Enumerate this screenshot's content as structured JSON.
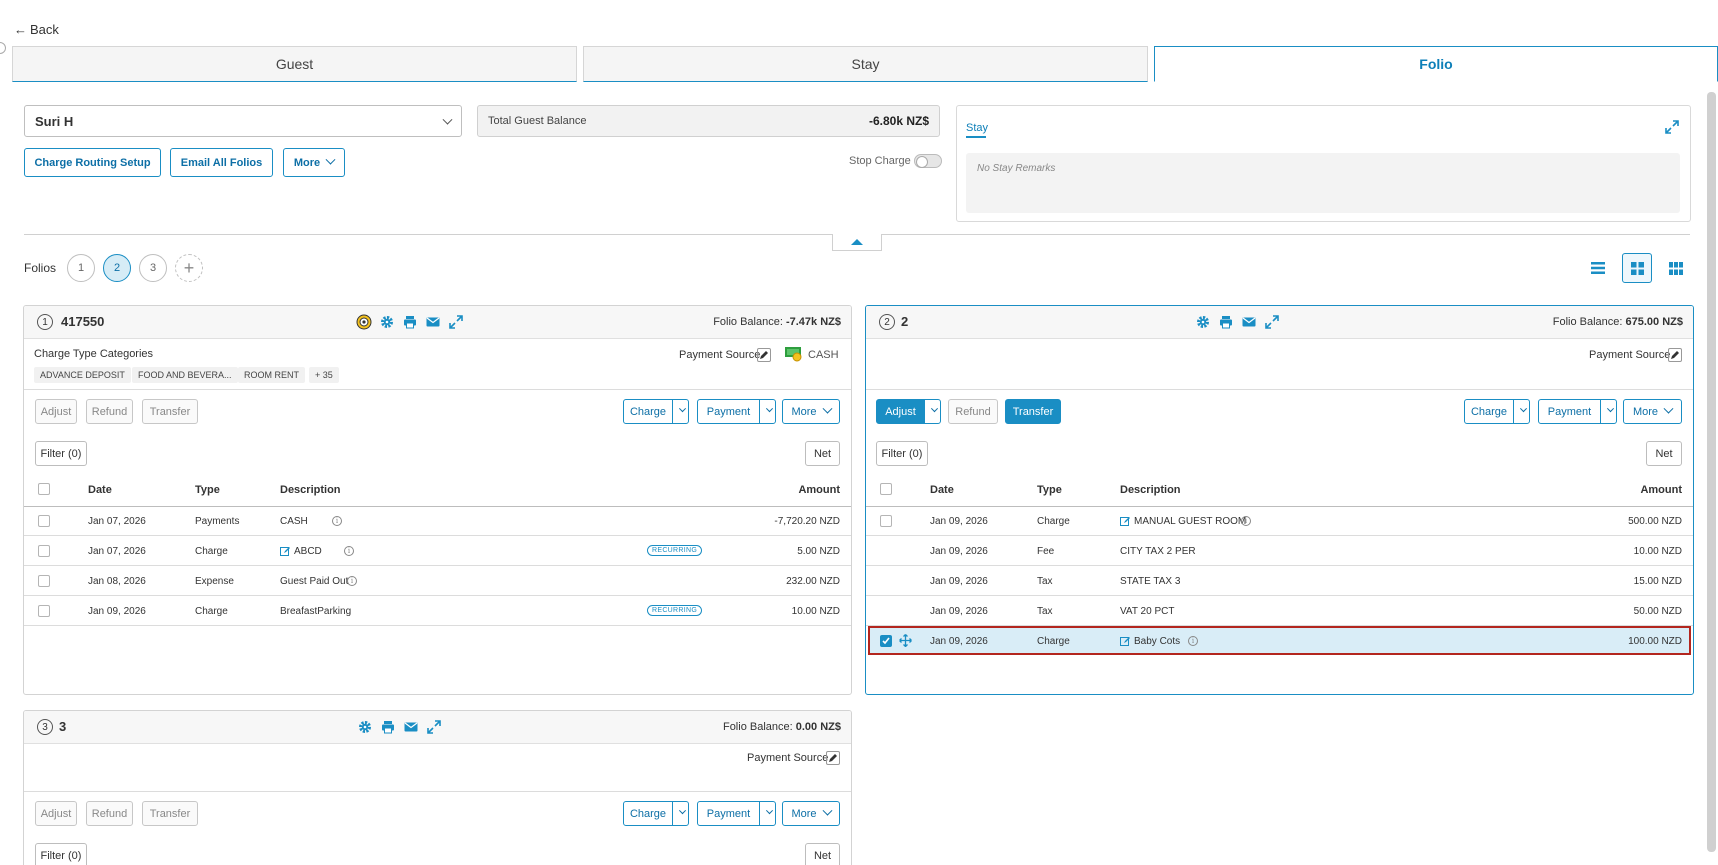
{
  "nav": {
    "back_label": "Back"
  },
  "tabs": [
    {
      "label": "Guest"
    },
    {
      "label": "Stay"
    },
    {
      "label": "Folio"
    }
  ],
  "guest_select": {
    "value": "Suri H"
  },
  "total_balance": {
    "label": "Total Guest Balance",
    "value": "-6.80k NZ$"
  },
  "actions": {
    "charge_routing": "Charge Routing Setup",
    "email_all": "Email All Folios",
    "more": "More"
  },
  "stop_charge": {
    "label": "Stop Charge"
  },
  "stay_panel": {
    "tab_label": "Stay",
    "remarks": "No Stay Remarks"
  },
  "folios_bar": {
    "label": "Folios",
    "numbers": [
      "1",
      "2",
      "3"
    ],
    "add": "+"
  },
  "common": {
    "adjust": "Adjust",
    "refund": "Refund",
    "transfer": "Transfer",
    "charge": "Charge",
    "payment": "Payment",
    "more": "More",
    "filter": "Filter (0)",
    "net": "Net",
    "payment_source": "Payment Source",
    "folio_balance": "Folio Balance:",
    "col_date": "Date",
    "col_type": "Type",
    "col_desc": "Description",
    "col_amount": "Amount",
    "recurring": "RECURRING"
  },
  "folio1": {
    "num": "1",
    "title": "417550",
    "balance": "-7.47k NZ$",
    "charge_type_label": "Charge Type Categories",
    "categories": [
      "ADVANCE DEPOSIT",
      "FOOD AND BEVERA...",
      "ROOM RENT",
      "+ 35"
    ],
    "payment_method": "CASH",
    "rows": [
      {
        "date": "Jan 07, 2026",
        "type": "Payments",
        "desc": "CASH",
        "amount": "-7,720.20 NZD"
      },
      {
        "date": "Jan 07, 2026",
        "type": "Charge",
        "desc": "ABCD",
        "amount": "5.00 NZD"
      },
      {
        "date": "Jan 08, 2026",
        "type": "Expense",
        "desc": "Guest Paid Out",
        "amount": "232.00 NZD"
      },
      {
        "date": "Jan 09, 2026",
        "type": "Charge",
        "desc": "BreafastParking",
        "amount": "10.00 NZD"
      }
    ]
  },
  "folio2": {
    "num": "2",
    "title": "2",
    "balance": "675.00 NZ$",
    "rows": [
      {
        "date": "Jan 09, 2026",
        "type": "Charge",
        "desc": "MANUAL GUEST ROOM",
        "amount": "500.00 NZD"
      },
      {
        "date": "Jan 09, 2026",
        "type": "Fee",
        "desc": "CITY TAX 2 PER",
        "amount": "10.00 NZD"
      },
      {
        "date": "Jan 09, 2026",
        "type": "Tax",
        "desc": "STATE TAX 3",
        "amount": "15.00 NZD"
      },
      {
        "date": "Jan 09, 2026",
        "type": "Tax",
        "desc": "VAT 20 PCT",
        "amount": "50.00 NZD"
      },
      {
        "date": "Jan 09, 2026",
        "type": "Charge",
        "desc": "Baby Cots",
        "amount": "100.00 NZD"
      }
    ]
  },
  "folio3": {
    "num": "3",
    "title": "3",
    "balance": "0.00 NZ$"
  },
  "colors": {
    "accent": "#1a8ec4",
    "highlight_row": "#d9edf7",
    "selection_border": "#b3261e"
  }
}
